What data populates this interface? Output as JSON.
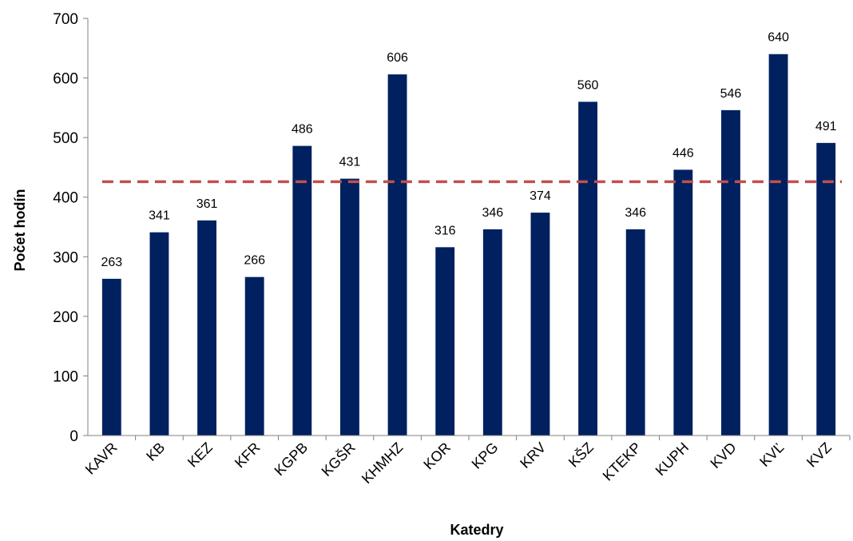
{
  "chart_data": {
    "type": "bar",
    "title": "",
    "xlabel": "Katedry",
    "ylabel": "Počet hodín",
    "ylim": [
      0,
      700
    ],
    "yticks": [
      0,
      100,
      200,
      300,
      400,
      500,
      600,
      700
    ],
    "grid": false,
    "legend": "none",
    "categories": [
      "KAVR",
      "KB",
      "KEZ",
      "KFR",
      "KGPB",
      "KGŠR",
      "KHMHZ",
      "KOR",
      "KPG",
      "KRV",
      "KŠZ",
      "KTEKP",
      "KUPH",
      "KVD",
      "KVĽ",
      "KVZ"
    ],
    "values": [
      263,
      341,
      361,
      266,
      486,
      431,
      606,
      316,
      346,
      374,
      560,
      346,
      446,
      546,
      640,
      491
    ],
    "reference_line": {
      "value": 426,
      "style": "dashed",
      "color": "#C0504D"
    },
    "bar_color": "#002060"
  }
}
